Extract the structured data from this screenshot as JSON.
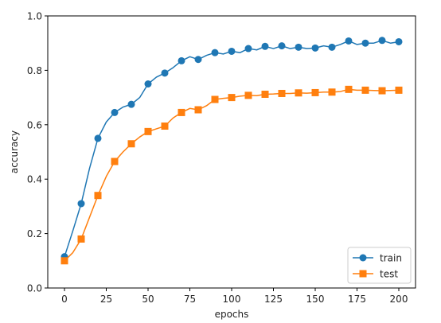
{
  "chart_data": {
    "type": "line",
    "title": "",
    "xlabel": "epochs",
    "ylabel": "accuracy",
    "xlim": [
      -10,
      210
    ],
    "ylim": [
      0.0,
      1.0
    ],
    "x_ticks": [
      0,
      25,
      50,
      75,
      100,
      125,
      150,
      175,
      200
    ],
    "y_ticks": [
      0.0,
      0.2,
      0.4,
      0.6,
      0.8,
      1.0
    ],
    "x_tick_labels": [
      "0",
      "25",
      "50",
      "75",
      "100",
      "125",
      "150",
      "175",
      "200"
    ],
    "y_tick_labels": [
      "0.0",
      "0.2",
      "0.4",
      "0.6",
      "0.8",
      "1.0"
    ],
    "grid": false,
    "legend_position": "bottom-right",
    "marker_every": 10,
    "series": [
      {
        "name": "train",
        "color": "#1f77b4",
        "marker": "circle",
        "x": [
          0,
          5,
          10,
          15,
          20,
          25,
          30,
          35,
          40,
          45,
          50,
          55,
          60,
          65,
          70,
          75,
          80,
          85,
          90,
          95,
          100,
          105,
          110,
          115,
          120,
          125,
          130,
          135,
          140,
          145,
          150,
          155,
          160,
          165,
          170,
          175,
          180,
          185,
          190,
          195,
          200
        ],
        "values": [
          0.115,
          0.21,
          0.31,
          0.44,
          0.55,
          0.61,
          0.645,
          0.665,
          0.675,
          0.7,
          0.75,
          0.775,
          0.79,
          0.81,
          0.835,
          0.85,
          0.84,
          0.855,
          0.865,
          0.86,
          0.87,
          0.865,
          0.88,
          0.875,
          0.888,
          0.88,
          0.89,
          0.88,
          0.885,
          0.88,
          0.882,
          0.89,
          0.885,
          0.895,
          0.908,
          0.895,
          0.9,
          0.9,
          0.91,
          0.9,
          0.905
        ]
      },
      {
        "name": "test",
        "color": "#ff7f0e",
        "marker": "square",
        "x": [
          0,
          5,
          10,
          15,
          20,
          25,
          30,
          35,
          40,
          45,
          50,
          55,
          60,
          65,
          70,
          75,
          80,
          85,
          90,
          95,
          100,
          105,
          110,
          115,
          120,
          125,
          130,
          135,
          140,
          145,
          150,
          155,
          160,
          165,
          170,
          175,
          180,
          185,
          190,
          195,
          200
        ],
        "values": [
          0.1,
          0.13,
          0.18,
          0.26,
          0.34,
          0.41,
          0.465,
          0.5,
          0.53,
          0.555,
          0.575,
          0.585,
          0.595,
          0.625,
          0.645,
          0.66,
          0.655,
          0.67,
          0.693,
          0.697,
          0.7,
          0.705,
          0.708,
          0.707,
          0.712,
          0.713,
          0.715,
          0.715,
          0.717,
          0.716,
          0.718,
          0.72,
          0.72,
          0.722,
          0.73,
          0.727,
          0.727,
          0.726,
          0.725,
          0.726,
          0.727
        ]
      }
    ]
  }
}
